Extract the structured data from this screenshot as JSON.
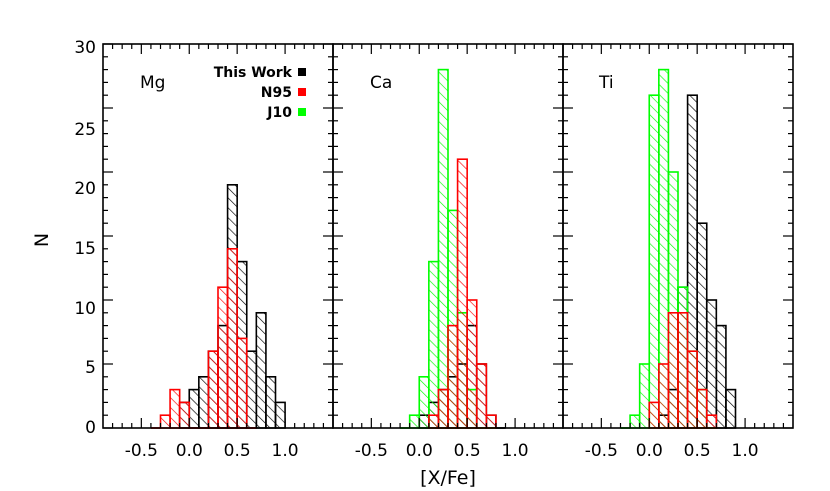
{
  "chart_data": {
    "type": "bar",
    "ylabel": "N",
    "xlabel": "[X/Fe]",
    "ylim": [
      0,
      30
    ],
    "xlim": [
      -0.9,
      1.5
    ],
    "yticks": [
      0,
      5,
      10,
      15,
      20,
      25,
      30
    ],
    "ytick_labels": [
      "0",
      "5",
      "10",
      "15",
      "20",
      "25",
      "30"
    ],
    "xticks": [
      -0.5,
      0.0,
      0.5,
      1.0
    ],
    "xtick_labels": [
      "-0.5",
      "0.0",
      "0.5",
      "1.0"
    ],
    "bin_width": 0.1,
    "legend": [
      {
        "name": "This Work",
        "color": "#000000"
      },
      {
        "name": "N95",
        "color": "#ff0000"
      },
      {
        "name": "J10",
        "color": "#00ff00"
      }
    ],
    "panels": [
      {
        "label": "Mg",
        "series": [
          {
            "name": "This Work",
            "bin_left": [
              -0.1,
              0.0,
              0.1,
              0.2,
              0.3,
              0.4,
              0.5,
              0.6,
              0.7,
              0.8,
              0.9
            ],
            "counts": [
              2,
              3,
              4,
              6,
              8,
              19,
              13,
              6,
              9,
              4,
              2
            ]
          },
          {
            "name": "N95",
            "bin_left": [
              -0.4,
              -0.3,
              -0.2,
              -0.1,
              0.0,
              0.1,
              0.2,
              0.3,
              0.4,
              0.5,
              0.6
            ],
            "counts": [
              0,
              1,
              3,
              2,
              0,
              0,
              6,
              11,
              14,
              7,
              0
            ]
          },
          {
            "name": "J10",
            "bin_left": [],
            "counts": []
          }
        ]
      },
      {
        "label": "Ca",
        "series": [
          {
            "name": "This Work",
            "bin_left": [
              0.0,
              0.1,
              0.2,
              0.3,
              0.4,
              0.5,
              0.6,
              0.7,
              0.8
            ],
            "counts": [
              1,
              2,
              3,
              4,
              5,
              8,
              5,
              1,
              0
            ]
          },
          {
            "name": "N95",
            "bin_left": [
              0.1,
              0.2,
              0.3,
              0.4,
              0.5,
              0.6,
              0.7
            ],
            "counts": [
              1,
              3,
              8,
              21,
              10,
              5,
              1
            ]
          },
          {
            "name": "J10",
            "bin_left": [
              -0.2,
              -0.1,
              0.0,
              0.1,
              0.2,
              0.3,
              0.4,
              0.5,
              0.6,
              0.7
            ],
            "counts": [
              0,
              1,
              4,
              13,
              28,
              17,
              9,
              3,
              0,
              0
            ]
          }
        ]
      },
      {
        "label": "Ti",
        "series": [
          {
            "name": "This Work",
            "bin_left": [
              0.1,
              0.2,
              0.3,
              0.4,
              0.5,
              0.6,
              0.7,
              0.8
            ],
            "counts": [
              1,
              3,
              11,
              26,
              16,
              10,
              8,
              3
            ]
          },
          {
            "name": "N95",
            "bin_left": [
              0.0,
              0.1,
              0.2,
              0.3,
              0.4,
              0.5,
              0.6
            ],
            "counts": [
              2,
              5,
              9,
              9,
              6,
              3,
              1
            ]
          },
          {
            "name": "J10",
            "bin_left": [
              -0.3,
              -0.2,
              -0.1,
              0.0,
              0.1,
              0.2,
              0.3,
              0.4,
              0.5,
              0.6
            ],
            "counts": [
              0,
              1,
              5,
              26,
              28,
              20,
              11,
              6,
              3,
              0
            ]
          }
        ]
      }
    ]
  }
}
